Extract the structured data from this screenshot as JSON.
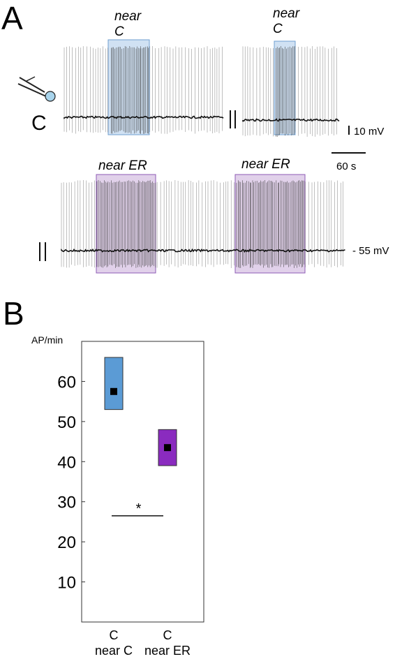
{
  "panel_a": {
    "letter": "A",
    "cell_label": "C",
    "top_windows": [
      {
        "line1": "near",
        "line2": "C"
      },
      {
        "line1": "near",
        "line2": "C"
      }
    ],
    "bottom_windows": [
      {
        "label": "near ER"
      },
      {
        "label": "near ER"
      }
    ],
    "scale_voltage": "10 mV",
    "scale_time": "60 s",
    "baseline_label": "- 55 mV",
    "colors": {
      "near_c_fill": "#a9c8ea",
      "near_c_edge": "#6f9fd0",
      "near_er_fill": "#cdb3dc",
      "near_er_edge": "#8d5ab5",
      "trace": "#3a3a3a",
      "pipette_tip": "#a8d4ec"
    }
  },
  "panel_b": {
    "letter": "B",
    "x_labels": [
      {
        "line1": "C",
        "line2": "near C"
      },
      {
        "line1": "C",
        "line2": "near ER"
      }
    ],
    "significance": "*"
  },
  "chart_data": {
    "type": "scatter",
    "ylabel": "AP/min",
    "ylim": [
      0,
      70
    ],
    "yticks": [
      10,
      20,
      30,
      40,
      50,
      60
    ],
    "categories": [
      "C near C",
      "C near ER"
    ],
    "series": [
      {
        "values": [
          57.5,
          43.5
        ],
        "box_low": [
          53,
          39
        ],
        "box_high": [
          66,
          48
        ]
      }
    ],
    "significance_bar": {
      "from": 0,
      "to": 1,
      "y": 26.5,
      "label": "*"
    },
    "box_colors": [
      "#5b9bd5",
      "#8a2bbf"
    ],
    "marker_color": "#000000",
    "grid": false
  }
}
